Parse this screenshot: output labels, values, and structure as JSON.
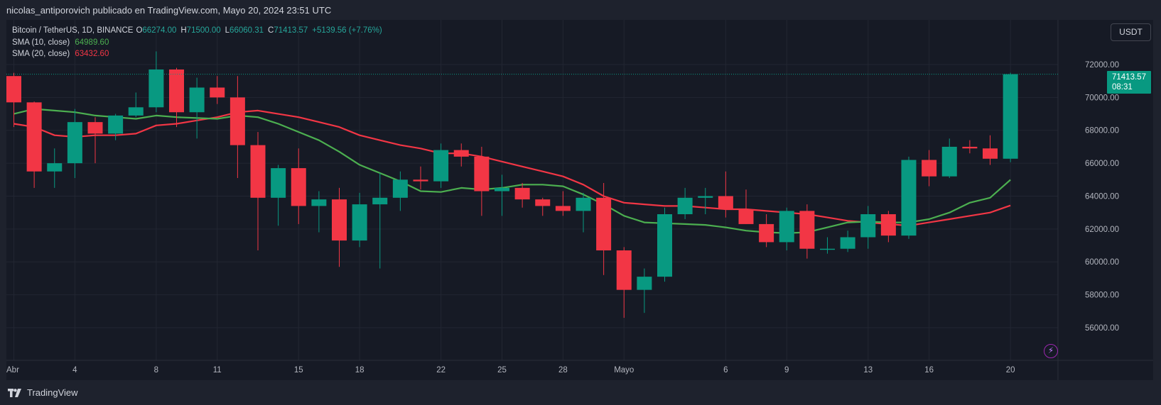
{
  "header": {
    "publisher_line": "nicolas_antiporovich publicado en TradingView.com, Mayo 20, 2024 23:51 UTC"
  },
  "legend": {
    "symbol": "Bitcoin / TetherUS, 1D, BINANCE",
    "open_label": "O",
    "open": "66274.00",
    "high_label": "H",
    "high": "71500.00",
    "low_label": "L",
    "low": "66060.31",
    "close_label": "C",
    "close": "71413.57",
    "change": "+5139.56 (+7.76%)",
    "sma10_label": "SMA (10, close)",
    "sma10_value": "64989.60",
    "sma20_label": "SMA (20, close)",
    "sma20_value": "63432.60"
  },
  "currency_button": "USDT",
  "price_tag": {
    "price": "71413.57",
    "countdown": "08:31"
  },
  "colors": {
    "up": "#089981",
    "down": "#f23645",
    "sma10": "#4caf50",
    "sma20": "#f23645",
    "background": "#161a25",
    "grid": "#222632"
  },
  "icons": {
    "flash": "flash-icon",
    "logo": "tradingview-logo-icon"
  },
  "footer": {
    "brand": "TradingView"
  },
  "chart_data": {
    "type": "candlestick",
    "title": "Bitcoin / TetherUS, 1D, BINANCE",
    "y_ticks": [
      "56000.00",
      "58000.00",
      "60000.00",
      "62000.00",
      "64000.00",
      "66000.00",
      "68000.00",
      "70000.00",
      "72000.00"
    ],
    "x_ticks": [
      "Abr",
      "4",
      "8",
      "11",
      "15",
      "18",
      "22",
      "25",
      "28",
      "Mayo",
      "6",
      "9",
      "13",
      "16",
      "20"
    ],
    "ylim": [
      55000,
      72800
    ],
    "grid": true,
    "candles": [
      {
        "date": "2024-04-01",
        "open": 71300,
        "high": 71500,
        "low": 68200,
        "close": 69700
      },
      {
        "date": "2024-04-02",
        "open": 69700,
        "high": 69750,
        "low": 64500,
        "close": 65500
      },
      {
        "date": "2024-04-03",
        "open": 65500,
        "high": 66900,
        "low": 64500,
        "close": 66000
      },
      {
        "date": "2024-04-04",
        "open": 66000,
        "high": 69300,
        "low": 65100,
        "close": 68500
      },
      {
        "date": "2024-04-05",
        "open": 68500,
        "high": 68800,
        "low": 66000,
        "close": 67800
      },
      {
        "date": "2024-04-06",
        "open": 67800,
        "high": 69000,
        "low": 67400,
        "close": 68900
      },
      {
        "date": "2024-04-07",
        "open": 68900,
        "high": 70300,
        "low": 68800,
        "close": 69400
      },
      {
        "date": "2024-04-08",
        "open": 69400,
        "high": 72800,
        "low": 69100,
        "close": 71700
      },
      {
        "date": "2024-04-09",
        "open": 71700,
        "high": 71800,
        "low": 68200,
        "close": 69100
      },
      {
        "date": "2024-04-10",
        "open": 69100,
        "high": 71200,
        "low": 67500,
        "close": 70600
      },
      {
        "date": "2024-04-11",
        "open": 70600,
        "high": 71300,
        "low": 69600,
        "close": 70000
      },
      {
        "date": "2024-04-12",
        "open": 70000,
        "high": 71300,
        "low": 65100,
        "close": 67100
      },
      {
        "date": "2024-04-13",
        "open": 67100,
        "high": 67900,
        "low": 60700,
        "close": 63900
      },
      {
        "date": "2024-04-14",
        "open": 63900,
        "high": 65900,
        "low": 62200,
        "close": 65700
      },
      {
        "date": "2024-04-15",
        "open": 65700,
        "high": 66900,
        "low": 62300,
        "close": 63400
      },
      {
        "date": "2024-04-16",
        "open": 63400,
        "high": 64300,
        "low": 61800,
        "close": 63800
      },
      {
        "date": "2024-04-17",
        "open": 63800,
        "high": 64500,
        "low": 59700,
        "close": 61300
      },
      {
        "date": "2024-04-18",
        "open": 61300,
        "high": 64200,
        "low": 60900,
        "close": 63500
      },
      {
        "date": "2024-04-19",
        "open": 63500,
        "high": 65400,
        "low": 59600,
        "close": 63900
      },
      {
        "date": "2024-04-20",
        "open": 63900,
        "high": 65500,
        "low": 63100,
        "close": 65000
      },
      {
        "date": "2024-04-21",
        "open": 65000,
        "high": 65800,
        "low": 64400,
        "close": 64900
      },
      {
        "date": "2024-04-22",
        "open": 64900,
        "high": 67200,
        "low": 64500,
        "close": 66800
      },
      {
        "date": "2024-04-23",
        "open": 66800,
        "high": 67200,
        "low": 65800,
        "close": 66400
      },
      {
        "date": "2024-04-24",
        "open": 66400,
        "high": 67000,
        "low": 62800,
        "close": 64300
      },
      {
        "date": "2024-04-25",
        "open": 64300,
        "high": 65300,
        "low": 62800,
        "close": 64500
      },
      {
        "date": "2024-04-26",
        "open": 64500,
        "high": 64800,
        "low": 63300,
        "close": 63800
      },
      {
        "date": "2024-04-27",
        "open": 63800,
        "high": 63900,
        "low": 62800,
        "close": 63400
      },
      {
        "date": "2024-04-28",
        "open": 63400,
        "high": 64300,
        "low": 62800,
        "close": 63100
      },
      {
        "date": "2024-04-29",
        "open": 63100,
        "high": 64200,
        "low": 61800,
        "close": 63900
      },
      {
        "date": "2024-04-30",
        "open": 63900,
        "high": 64800,
        "low": 59200,
        "close": 60700
      },
      {
        "date": "2024-05-01",
        "open": 60700,
        "high": 60900,
        "low": 56600,
        "close": 58300
      },
      {
        "date": "2024-05-02",
        "open": 58300,
        "high": 59600,
        "low": 56900,
        "close": 59100
      },
      {
        "date": "2024-05-03",
        "open": 59100,
        "high": 63300,
        "low": 58800,
        "close": 62900
      },
      {
        "date": "2024-05-04",
        "open": 62900,
        "high": 64500,
        "low": 62600,
        "close": 63900
      },
      {
        "date": "2024-05-05",
        "open": 63900,
        "high": 64500,
        "low": 62900,
        "close": 64000
      },
      {
        "date": "2024-05-06",
        "open": 64000,
        "high": 65500,
        "low": 62700,
        "close": 63200
      },
      {
        "date": "2024-05-07",
        "open": 63200,
        "high": 64400,
        "low": 62300,
        "close": 62300
      },
      {
        "date": "2024-05-08",
        "open": 62300,
        "high": 62900,
        "low": 60900,
        "close": 61200
      },
      {
        "date": "2024-05-09",
        "open": 61200,
        "high": 63300,
        "low": 60700,
        "close": 63100
      },
      {
        "date": "2024-05-10",
        "open": 63100,
        "high": 63500,
        "low": 60200,
        "close": 60800
      },
      {
        "date": "2024-05-11",
        "open": 60800,
        "high": 61500,
        "low": 60500,
        "close": 60800
      },
      {
        "date": "2024-05-12",
        "open": 60800,
        "high": 61900,
        "low": 60600,
        "close": 61500
      },
      {
        "date": "2024-05-13",
        "open": 61500,
        "high": 63400,
        "low": 60800,
        "close": 62900
      },
      {
        "date": "2024-05-14",
        "open": 62900,
        "high": 63100,
        "low": 61200,
        "close": 61600
      },
      {
        "date": "2024-05-15",
        "open": 61600,
        "high": 66400,
        "low": 61400,
        "close": 66200
      },
      {
        "date": "2024-05-16",
        "open": 66200,
        "high": 66800,
        "low": 64600,
        "close": 65200
      },
      {
        "date": "2024-05-17",
        "open": 65200,
        "high": 67500,
        "low": 65100,
        "close": 67000
      },
      {
        "date": "2024-05-18",
        "open": 67000,
        "high": 67400,
        "low": 66600,
        "close": 66900
      },
      {
        "date": "2024-05-19",
        "open": 66900,
        "high": 67700,
        "low": 65900,
        "close": 66274
      },
      {
        "date": "2024-05-20",
        "open": 66274,
        "high": 71500,
        "low": 66060.31,
        "close": 71413.57
      }
    ],
    "series": [
      {
        "name": "SMA (10, close)",
        "values": [
          69000,
          69300,
          69200,
          69100,
          68900,
          68800,
          68700,
          68900,
          68800,
          68750,
          68700,
          68900,
          68800,
          68400,
          67900,
          67400,
          66700,
          65900,
          65400,
          64900,
          64300,
          64250,
          64500,
          64400,
          64500,
          64700,
          64700,
          64600,
          64100,
          63500,
          62800,
          62400,
          62350,
          62300,
          62250,
          62100,
          61900,
          61800,
          61750,
          61800,
          62100,
          62400,
          62450,
          62400,
          62400,
          62600,
          63000,
          63600,
          63900,
          64989.6
        ]
      },
      {
        "name": "SMA (20, close)",
        "values": [
          68400,
          68200,
          67700,
          67600,
          67700,
          67700,
          67800,
          68300,
          68400,
          68600,
          68800,
          69100,
          69200,
          69000,
          68800,
          68500,
          68200,
          67700,
          67400,
          67100,
          66900,
          66600,
          66600,
          66400,
          66100,
          65800,
          65500,
          65200,
          64700,
          64000,
          63600,
          63500,
          63400,
          63400,
          63300,
          63200,
          63200,
          63100,
          63000,
          62900,
          62700,
          62500,
          62400,
          62300,
          62200,
          62400,
          62600,
          62800,
          63000,
          63432.6
        ]
      }
    ]
  }
}
